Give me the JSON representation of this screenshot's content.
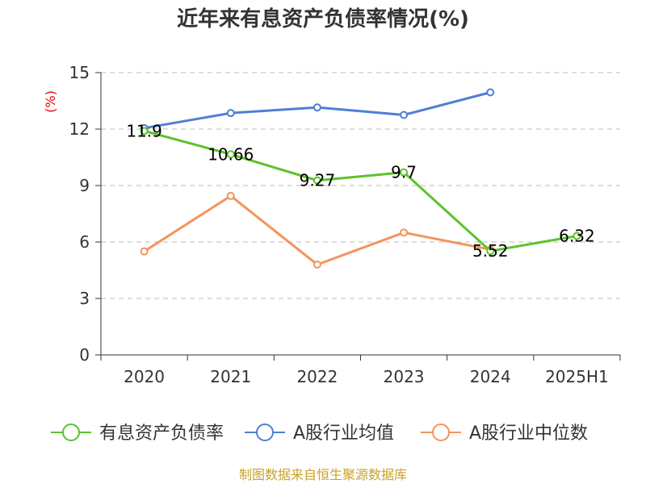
{
  "chart_data": {
    "type": "line",
    "title": "近年来有息资产负债率情况(%)",
    "ylabel": "(%)",
    "xlabel": "",
    "categories": [
      "2020",
      "2021",
      "2022",
      "2023",
      "2024",
      "2025H1"
    ],
    "ylim": [
      0,
      15
    ],
    "yticks": [
      0,
      3,
      6,
      9,
      12,
      15
    ],
    "grid": true,
    "legend_position": "bottom",
    "series": [
      {
        "name": "有息资产负债率",
        "color": "#5cc22b",
        "values": [
          11.9,
          10.66,
          9.27,
          9.7,
          5.52,
          6.32
        ],
        "labels": [
          "11.9",
          "10.66",
          "9.27",
          "9.7",
          "5.52",
          "6.32"
        ]
      },
      {
        "name": "A股行业均值",
        "color": "#4e7fd6",
        "values": [
          12.05,
          12.85,
          13.15,
          12.75,
          13.95,
          null
        ]
      },
      {
        "name": "A股行业中位数",
        "color": "#f4935e",
        "values": [
          5.5,
          8.45,
          4.8,
          6.5,
          5.6,
          null
        ]
      }
    ]
  },
  "source": "制图数据来自恒生聚源数据库"
}
